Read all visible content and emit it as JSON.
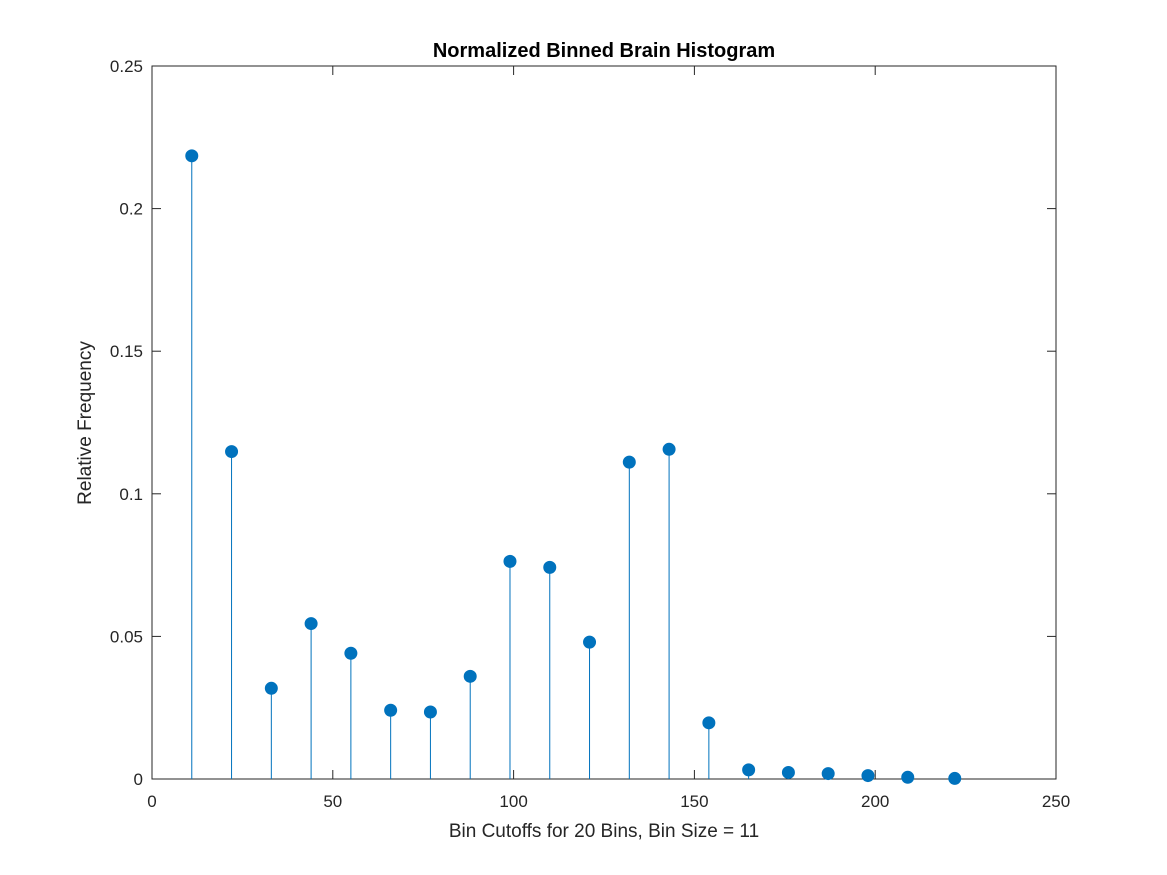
{
  "chart_data": {
    "type": "stem",
    "title": "Normalized Binned Brain Histogram",
    "xlabel": "Bin Cutoffs for 20 Bins, Bin Size = 11",
    "ylabel": "Relative Frequency",
    "xlim": [
      0,
      250
    ],
    "ylim": [
      0,
      0.25
    ],
    "xticks": [
      0,
      50,
      100,
      150,
      200,
      250
    ],
    "xtick_labels": [
      "0",
      "50",
      "100",
      "150",
      "200",
      "250"
    ],
    "yticks": [
      0,
      0.05,
      0.1,
      0.15,
      0.2,
      0.25
    ],
    "ytick_labels": [
      "0",
      "0.05",
      "0.1",
      "0.15",
      "0.2",
      "0.25"
    ],
    "grid": false,
    "legend": "none",
    "color": "#0072BD",
    "x": [
      11,
      22,
      33,
      44,
      55,
      66,
      77,
      88,
      99,
      110,
      121,
      132,
      143,
      154,
      165,
      176,
      187,
      198,
      209,
      222
    ],
    "values": [
      0.2185,
      0.1148,
      0.0318,
      0.0545,
      0.0441,
      0.0241,
      0.0235,
      0.036,
      0.0763,
      0.0742,
      0.048,
      0.1111,
      0.1156,
      0.0197,
      0.0032,
      0.0023,
      0.0019,
      0.0012,
      0.0006,
      0.0002
    ]
  }
}
